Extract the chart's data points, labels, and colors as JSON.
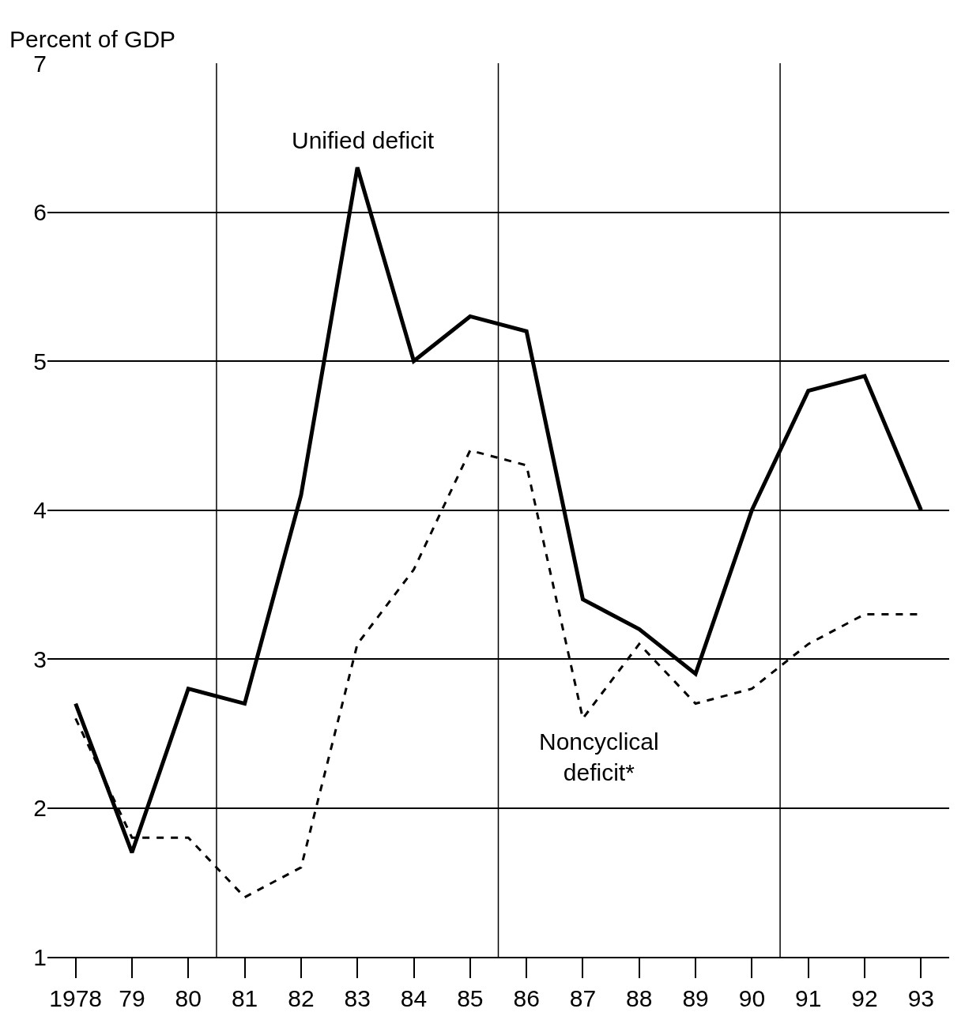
{
  "chart_data": {
    "type": "line",
    "ylabel": "Percent of GDP",
    "x": [
      1978,
      1979,
      1980,
      1981,
      1982,
      1983,
      1984,
      1985,
      1986,
      1987,
      1988,
      1989,
      1990,
      1991,
      1992,
      1993
    ],
    "series": [
      {
        "name": "Unified deficit",
        "color": "#000000",
        "line_style": "solid",
        "values": [
          2.7,
          1.7,
          2.8,
          2.7,
          4.1,
          6.3,
          5.0,
          5.3,
          5.2,
          3.4,
          3.2,
          2.9,
          4.0,
          4.8,
          4.9,
          4.0
        ]
      },
      {
        "name": "Noncyclical deficit*",
        "color": "#000000",
        "line_style": "dashed",
        "values": [
          2.6,
          1.8,
          1.8,
          1.4,
          1.6,
          3.1,
          3.6,
          4.4,
          4.3,
          2.6,
          3.1,
          2.7,
          2.8,
          3.1,
          3.3,
          3.3
        ]
      }
    ],
    "xlim": [
      1977.5,
      1993.5
    ],
    "xticks": [
      {
        "value": 1978,
        "label": "1978"
      },
      {
        "value": 1979,
        "label": "79"
      },
      {
        "value": 1980,
        "label": "80"
      },
      {
        "value": 1981,
        "label": "81"
      },
      {
        "value": 1982,
        "label": "82"
      },
      {
        "value": 1983,
        "label": "83"
      },
      {
        "value": 1984,
        "label": "84"
      },
      {
        "value": 1985,
        "label": "85"
      },
      {
        "value": 1986,
        "label": "86"
      },
      {
        "value": 1987,
        "label": "87"
      },
      {
        "value": 1988,
        "label": "88"
      },
      {
        "value": 1989,
        "label": "89"
      },
      {
        "value": 1990,
        "label": "90"
      },
      {
        "value": 1991,
        "label": "91"
      },
      {
        "value": 1992,
        "label": "92"
      },
      {
        "value": 1993,
        "label": "93"
      }
    ],
    "ylim": [
      1,
      7
    ],
    "yticks": [
      1,
      2,
      3,
      4,
      5,
      6,
      7
    ],
    "ref_lines": [
      {
        "axis": "x",
        "value": 1980.5,
        "label": null,
        "color": "#000000"
      },
      {
        "axis": "x",
        "value": 1985.5,
        "label": null,
        "color": "#000000"
      },
      {
        "axis": "x",
        "value": 1990.5,
        "label": null,
        "color": "#000000"
      }
    ],
    "grid": "y",
    "legend": false,
    "marker": "none"
  }
}
